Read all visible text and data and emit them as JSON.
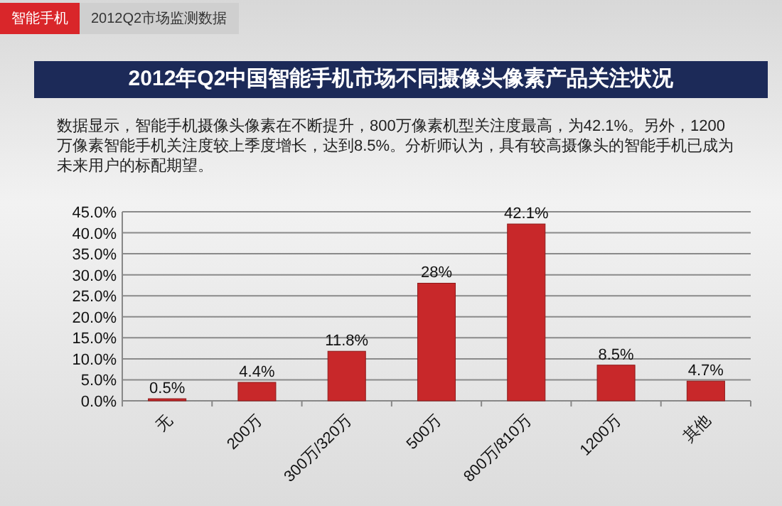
{
  "chart_data": {
    "type": "bar",
    "title": "2012年Q2中国智能手机市场不同摄像头像素产品关注状况",
    "subtitle": "数据显示，智能手机摄像头像素在不断提升，800万像素机型关注度最高，为42.1%。另外，1200万像素智能手机关注度较上季度增长，达到8.5%。分析师认为，具有较高摄像头的智能手机已成为未来用户的标配期望。",
    "annotations": [
      "智能手机",
      "2012Q2市场监测数据"
    ],
    "categories": [
      "无",
      "200万",
      "300万/320万",
      "500万",
      "800万/810万",
      "1200万",
      "其他"
    ],
    "values": [
      0.5,
      4.4,
      11.8,
      28,
      42.1,
      8.5,
      4.7
    ],
    "value_labels": [
      "0.5%",
      "4.4%",
      "11.8%",
      "28%",
      "42.1%",
      "8.5%",
      "4.7%"
    ],
    "color": "#c8282a",
    "ylim": [
      0,
      45
    ],
    "yticks": [
      {
        "value": 0,
        "label": "0.0%"
      },
      {
        "value": 5,
        "label": "5.0%"
      },
      {
        "value": 10,
        "label": "10.0%"
      },
      {
        "value": 15,
        "label": "15.0%"
      },
      {
        "value": 20,
        "label": "20.0%"
      },
      {
        "value": 25,
        "label": "25.0%"
      },
      {
        "value": 30,
        "label": "30.0%"
      },
      {
        "value": 35,
        "label": "35.0%"
      },
      {
        "value": 40,
        "label": "40.0%"
      },
      {
        "value": 45,
        "label": "45.0%"
      }
    ],
    "grid": "y"
  }
}
